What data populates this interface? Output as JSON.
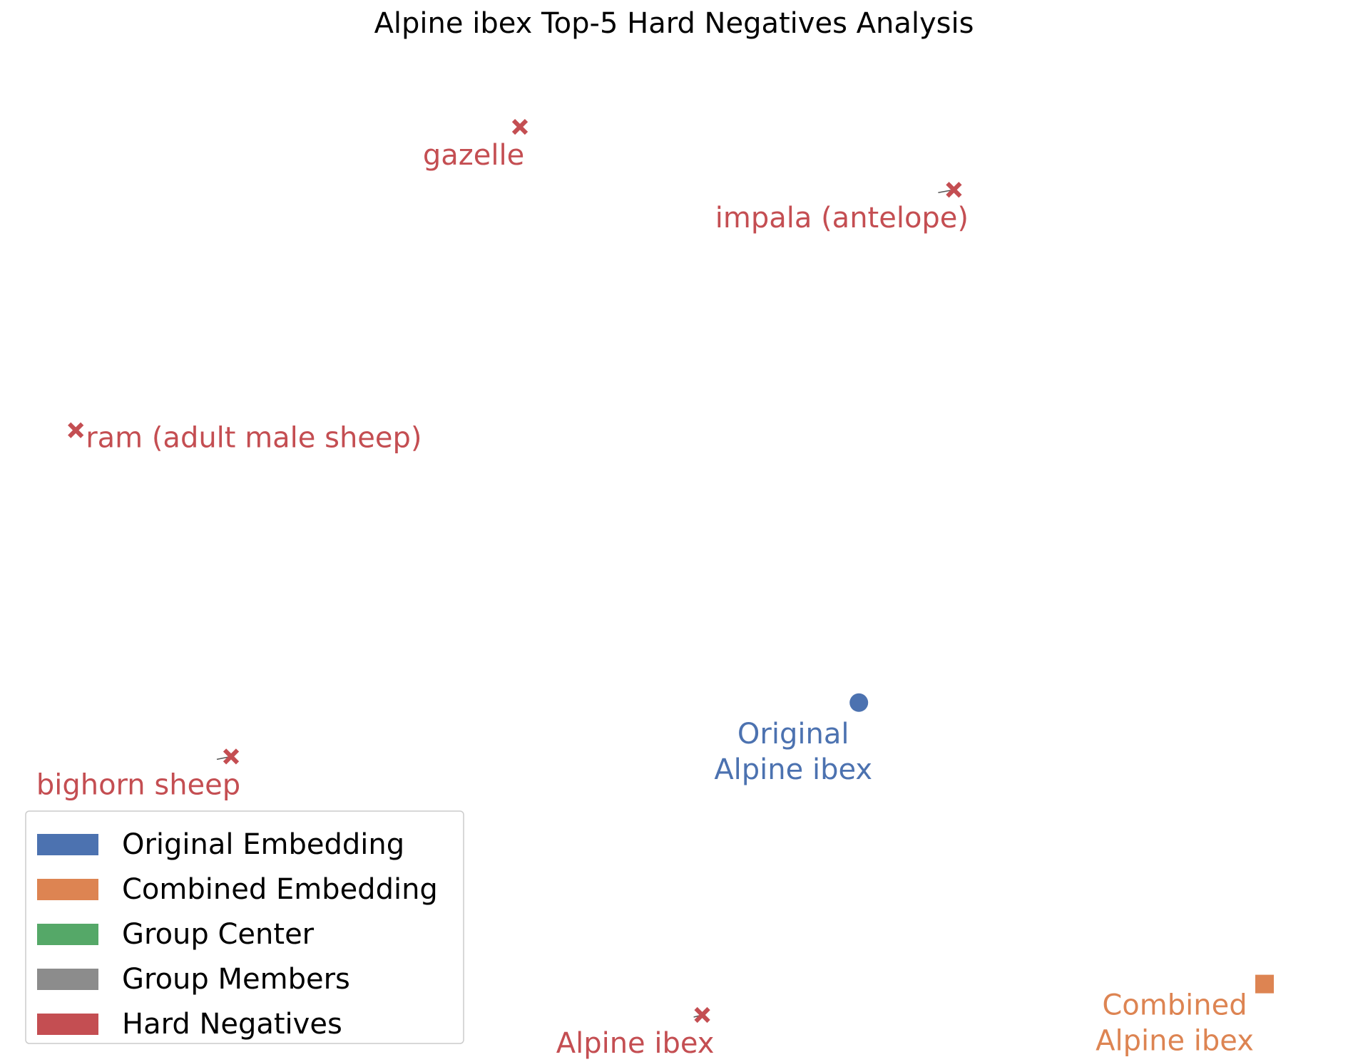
{
  "chart_data": {
    "type": "scatter",
    "title": "Alpine ibex Top-5 Hard Negatives Analysis",
    "xlabel": "",
    "ylabel": "",
    "axes_visible": false,
    "grid": false,
    "xlim": [
      0,
      100
    ],
    "ylim": [
      0,
      100
    ],
    "points": [
      {
        "label": "gazelle",
        "group": "hard_negative",
        "marker": "x",
        "x": 38.0,
        "y": 93.0,
        "label_lines": [
          "gazelle"
        ]
      },
      {
        "label": "impala (antelope)",
        "group": "hard_negative",
        "marker": "x",
        "x": 71.8,
        "y": 86.7,
        "label_lines": [
          "impala (antelope)"
        ]
      },
      {
        "label": "ram (adult male sheep)",
        "group": "hard_negative",
        "marker": "x",
        "x": 3.4,
        "y": 62.6,
        "label_lines": [
          "ram (adult male sheep)"
        ]
      },
      {
        "label": "bighorn sheep",
        "group": "hard_negative",
        "marker": "x",
        "x": 15.5,
        "y": 29.9,
        "label_lines": [
          "bighorn sheep"
        ]
      },
      {
        "label": "Alpine ibex",
        "group": "hard_negative",
        "marker": "x",
        "x": 52.2,
        "y": 4.0,
        "label_lines": [
          "Alpine ibex"
        ]
      },
      {
        "label": "Original Alpine ibex",
        "group": "original",
        "marker": "circle",
        "x": 64.4,
        "y": 35.3,
        "label_lines": [
          "Original",
          "Alpine ibex"
        ]
      },
      {
        "label": "Combined Alpine ibex",
        "group": "combined",
        "marker": "square",
        "x": 96.0,
        "y": 7.1,
        "label_lines": [
          "Combined",
          "Alpine ibex"
        ]
      }
    ],
    "legend": {
      "position": "lower-left",
      "entries": [
        {
          "label": "Original Embedding",
          "color": "#4c72b0"
        },
        {
          "label": "Combined Embedding",
          "color": "#dd8452"
        },
        {
          "label": "Group Center",
          "color": "#55a868"
        },
        {
          "label": "Group Members",
          "color": "#8c8c8c"
        },
        {
          "label": "Hard Negatives",
          "color": "#c44e52"
        }
      ]
    },
    "colors": {
      "original": "#4c72b0",
      "combined": "#dd8452",
      "hard_negative": "#c44e52",
      "connector": "#555555"
    }
  }
}
